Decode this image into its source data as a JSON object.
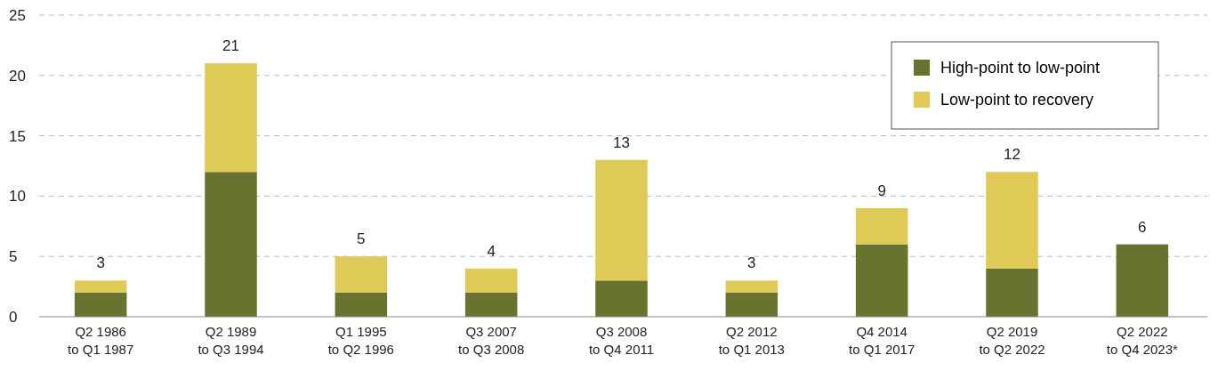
{
  "chart_data": {
    "type": "bar",
    "stacked": true,
    "categories": [
      "Q2 1986\nto Q1 1987",
      "Q2 1989\nto Q3 1994",
      "Q1 1995\nto Q2 1996",
      "Q3 2007\nto Q3 2008",
      "Q3 2008\nto Q4 2011",
      "Q2 2012\nto Q1 2013",
      "Q4 2014\nto Q1 2017",
      "Q2 2019\nto Q2 2022",
      "Q2 2022\nto Q4 2023*"
    ],
    "series": [
      {
        "name": "High-point to low-point",
        "color": "#68732f",
        "values": [
          2,
          12,
          2,
          2,
          3,
          2,
          6,
          4,
          6
        ]
      },
      {
        "name": "Low-point to recovery",
        "color": "#dfc957",
        "values": [
          1,
          9,
          3,
          2,
          10,
          1,
          3,
          8,
          0
        ]
      }
    ],
    "totals": [
      "3",
      "21",
      "5",
      "4",
      "13",
      "3",
      "9",
      "12",
      "6"
    ],
    "ylim": [
      0,
      25
    ],
    "yticks": [
      0,
      5,
      10,
      15,
      20,
      25
    ],
    "grid": "y",
    "legend": "top right"
  }
}
